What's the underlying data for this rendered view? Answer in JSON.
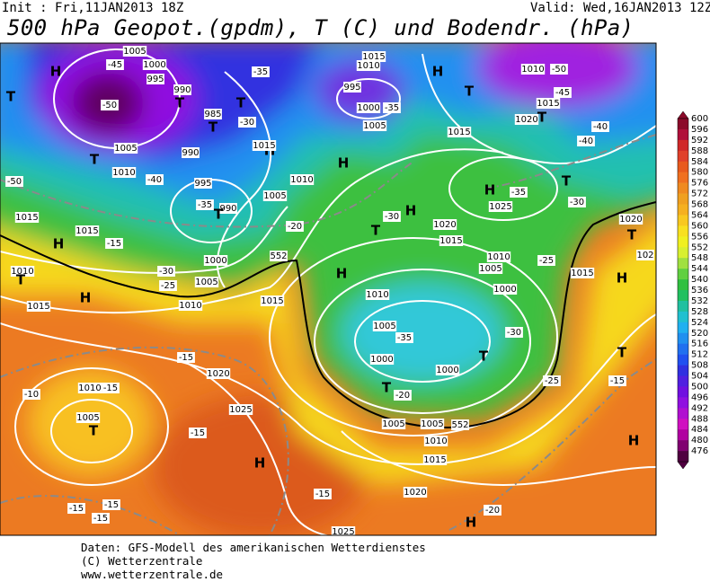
{
  "header": {
    "init": "Init : Fri,11JAN2013 18Z",
    "valid": "Valid: Wed,16JAN2013 12Z",
    "title": "500 hPa Geopot.(gpdm), T (C) und Bodendr. (hPa)"
  },
  "footer": [
    "Daten: GFS-Modell des amerikanischen Wetterdienstes",
    "(C) Wetterzentrale",
    "www.wetterzentrale.de"
  ],
  "colorbar": [
    {
      "label": "600",
      "color": "#8b0a2a"
    },
    {
      "label": "596",
      "color": "#b0103a"
    },
    {
      "label": "592",
      "color": "#d02828"
    },
    {
      "label": "588",
      "color": "#e0402a"
    },
    {
      "label": "584",
      "color": "#e85a1e"
    },
    {
      "label": "580",
      "color": "#f07020"
    },
    {
      "label": "576",
      "color": "#f08a20"
    },
    {
      "label": "572",
      "color": "#f0a020"
    },
    {
      "label": "568",
      "color": "#f5b020"
    },
    {
      "label": "564",
      "color": "#f8c820"
    },
    {
      "label": "560",
      "color": "#f8e020"
    },
    {
      "label": "556",
      "color": "#f0f020"
    },
    {
      "label": "552",
      "color": "#d8f030"
    },
    {
      "label": "548",
      "color": "#a0e040"
    },
    {
      "label": "544",
      "color": "#60d040"
    },
    {
      "label": "540",
      "color": "#30c040"
    },
    {
      "label": "536",
      "color": "#20c060"
    },
    {
      "label": "532",
      "color": "#20c0a0"
    },
    {
      "label": "528",
      "color": "#20c0d0"
    },
    {
      "label": "524",
      "color": "#20b0f0"
    },
    {
      "label": "520",
      "color": "#2090f0"
    },
    {
      "label": "516",
      "color": "#2070f0"
    },
    {
      "label": "512",
      "color": "#2050f0"
    },
    {
      "label": "508",
      "color": "#3030e0"
    },
    {
      "label": "504",
      "color": "#5020e0"
    },
    {
      "label": "500",
      "color": "#7010e0"
    },
    {
      "label": "496",
      "color": "#9010e0"
    },
    {
      "label": "492",
      "color": "#b010d0"
    },
    {
      "label": "488",
      "color": "#d010c0"
    },
    {
      "label": "484",
      "color": "#b000a0"
    },
    {
      "label": "480",
      "color": "#800070"
    },
    {
      "label": "476",
      "color": "#500040"
    }
  ],
  "map": {
    "labels": [
      "H",
      "-45",
      "1005",
      "1000",
      "995",
      "990",
      "-50",
      "T",
      "985",
      "T",
      "T",
      "-35",
      "-30",
      "1005",
      "990",
      "T",
      "1010",
      "-40",
      "995",
      "-35",
      "990",
      "T",
      "H",
      "1015",
      "H",
      "1010",
      "1005",
      "-20",
      "995",
      "1000",
      "-35",
      "1005",
      "1015",
      "H",
      "1010",
      "1015",
      "T",
      "1010",
      "-50",
      "-45",
      "1015",
      "1020",
      "T",
      "-40",
      "-40",
      "H",
      "-35",
      "1025",
      "T",
      "-30",
      "H",
      "-30",
      "T",
      "1020",
      "1015",
      "1010",
      "-25",
      "1005",
      "1000",
      "H",
      "1010",
      "1005",
      "-35",
      "-30",
      "1000",
      "T",
      "1000",
      "T",
      "-20",
      "-25",
      "1005",
      "1005",
      "552",
      "1010",
      "1015",
      "1020",
      "-20",
      "H",
      "1025",
      "T",
      "-50",
      "1015",
      "1015",
      "H",
      "-15",
      "1010",
      "T",
      "-30",
      "-25",
      "1000",
      "552",
      "1005",
      "1010",
      "H",
      "1015",
      "1015",
      "-15",
      "1020",
      "1010",
      "-10",
      "-15",
      "1005",
      "T",
      "1025",
      "-15",
      "H",
      "-15",
      "-15",
      "-15",
      "-15",
      "1020",
      "T",
      "102",
      "1015",
      "H",
      "T",
      "-15",
      "H"
    ]
  }
}
